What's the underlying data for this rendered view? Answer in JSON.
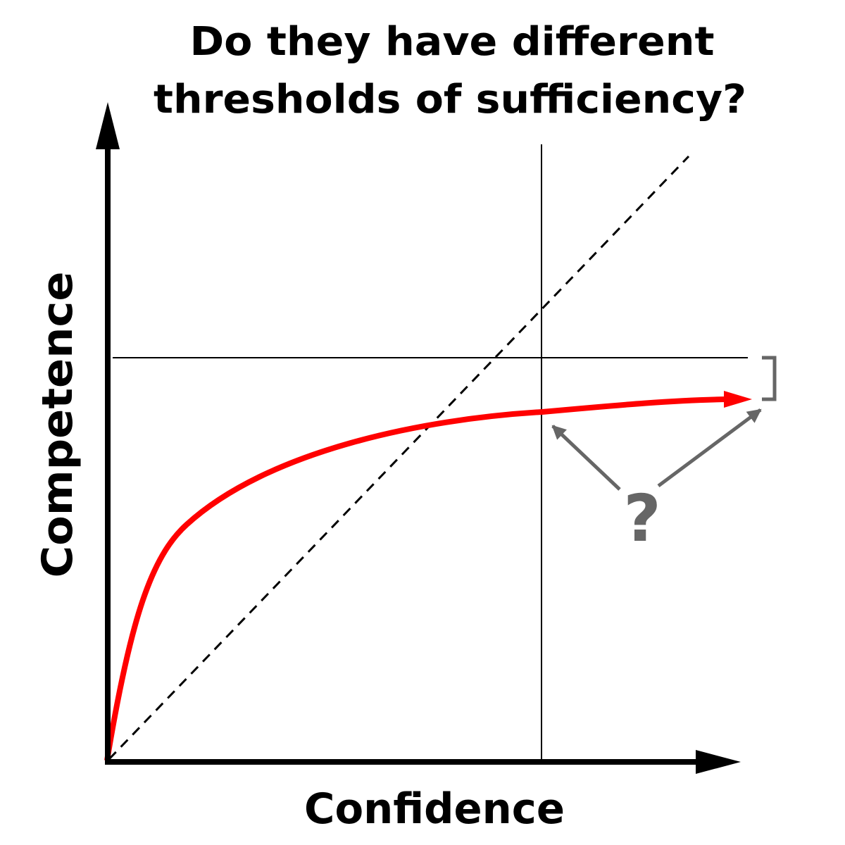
{
  "title": [
    "Do they have different",
    "thresholds of sufficiency?"
  ],
  "y_axis_label": "Competence",
  "x_axis_label": "Confidence",
  "annotation": "?"
}
